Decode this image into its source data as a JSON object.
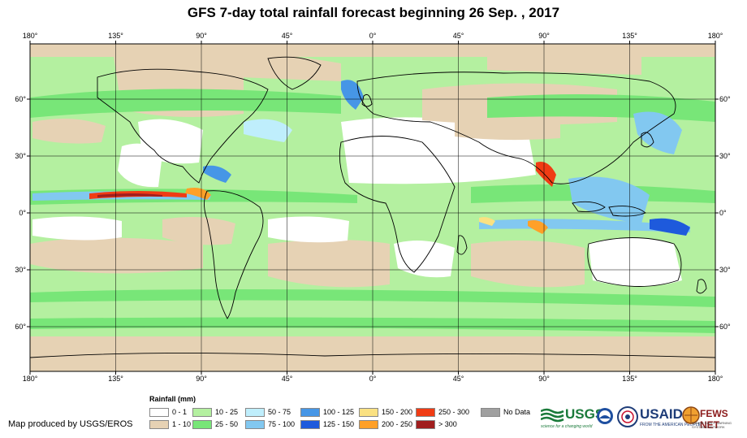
{
  "title": "GFS 7-day total rainfall forecast beginning 26 Sep. , 2017",
  "axes": {
    "lon_labels": [
      "180°",
      "135°",
      "90°",
      "45°",
      "0°",
      "45°",
      "90°",
      "135°",
      "180°"
    ],
    "lat_labels": [
      "60°",
      "30°",
      "0°",
      "30°",
      "60°"
    ]
  },
  "legend": {
    "title": "Rainfall (mm)",
    "items": [
      {
        "label": "0 - 1",
        "color": "#ffffff"
      },
      {
        "label": "1 - 10",
        "color": "#e6d2b4"
      },
      {
        "label": "10 - 25",
        "color": "#b4f0a0"
      },
      {
        "label": "25 - 50",
        "color": "#78e678"
      },
      {
        "label": "50 - 75",
        "color": "#bfeefc"
      },
      {
        "label": "75 - 100",
        "color": "#82c8f0"
      },
      {
        "label": "100 - 125",
        "color": "#4696e6"
      },
      {
        "label": "125 - 150",
        "color": "#1e5adc"
      },
      {
        "label": "150 - 200",
        "color": "#fae182"
      },
      {
        "label": "200 - 250",
        "color": "#ffa028"
      },
      {
        "label": "250 - 300",
        "color": "#f03c14"
      },
      {
        "label": "> 300",
        "color": "#a01e1e"
      },
      {
        "label": "No Data",
        "color": "#a0a0a0"
      }
    ]
  },
  "credit": "Map produced by USGS/EROS",
  "logos": {
    "usgs": "USGS",
    "usgs_tagline": "science for a changing world",
    "usaid": "USAID",
    "usaid_tagline": "FROM THE AMERICAN PEOPLE",
    "fewsnet": "FEWS NET",
    "fewsnet_tagline": "FAMINE EARLY WARNING SYSTEMS NETWORK"
  }
}
